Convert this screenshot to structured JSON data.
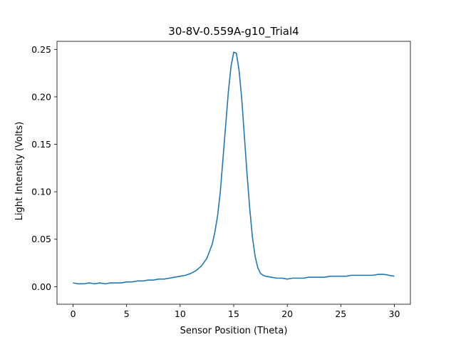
{
  "chart_data": {
    "type": "line",
    "title": "30-8V-0.559A-g10_Trial4",
    "xlabel": "Sensor Position (Theta)",
    "ylabel": "Light Intensity (Volts)",
    "xlim": [
      -1.5,
      31.5
    ],
    "ylim": [
      -0.0185,
      0.2585
    ],
    "xticks": [
      0,
      5,
      10,
      15,
      20,
      25,
      30
    ],
    "xtick_labels": [
      "0",
      "5",
      "10",
      "15",
      "20",
      "25",
      "30"
    ],
    "yticks": [
      0.0,
      0.05,
      0.1,
      0.15,
      0.2,
      0.25
    ],
    "ytick_labels": [
      "0.00",
      "0.05",
      "0.10",
      "0.15",
      "0.20",
      "0.25"
    ],
    "grid": false,
    "line_color": "#1f77b4",
    "series": [
      {
        "x": [
          0,
          0.5,
          1,
          1.5,
          2,
          2.5,
          3,
          3.5,
          4,
          4.5,
          5,
          5.5,
          6,
          6.5,
          7,
          7.5,
          8,
          8.5,
          9,
          9.5,
          10,
          10.5,
          11,
          11.5,
          12,
          12.5,
          13,
          13.25,
          13.5,
          13.75,
          14,
          14.25,
          14.5,
          14.75,
          15,
          15.25,
          15.5,
          15.75,
          16,
          16.25,
          16.5,
          16.75,
          17,
          17.25,
          17.5,
          17.75,
          18,
          18.5,
          19,
          19.5,
          20,
          20.5,
          21,
          21.5,
          22,
          22.5,
          23,
          23.5,
          24,
          24.5,
          25,
          25.5,
          26,
          26.5,
          27,
          27.5,
          28,
          28.5,
          29,
          29.5,
          30
        ],
        "y": [
          0.004,
          0.003,
          0.003,
          0.004,
          0.003,
          0.004,
          0.003,
          0.004,
          0.004,
          0.004,
          0.005,
          0.005,
          0.006,
          0.006,
          0.007,
          0.007,
          0.008,
          0.008,
          0.009,
          0.01,
          0.011,
          0.012,
          0.014,
          0.017,
          0.022,
          0.03,
          0.045,
          0.058,
          0.075,
          0.1,
          0.135,
          0.17,
          0.205,
          0.232,
          0.247,
          0.246,
          0.228,
          0.198,
          0.158,
          0.118,
          0.082,
          0.052,
          0.032,
          0.02,
          0.014,
          0.012,
          0.011,
          0.01,
          0.009,
          0.009,
          0.008,
          0.009,
          0.009,
          0.009,
          0.01,
          0.01,
          0.01,
          0.01,
          0.011,
          0.011,
          0.011,
          0.011,
          0.012,
          0.012,
          0.012,
          0.012,
          0.012,
          0.013,
          0.013,
          0.012,
          0.011
        ]
      }
    ]
  }
}
